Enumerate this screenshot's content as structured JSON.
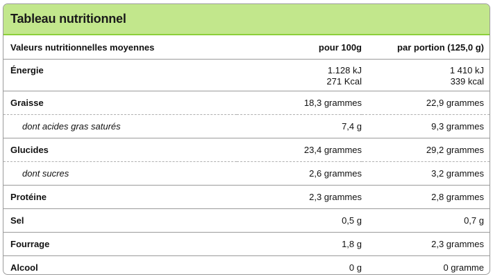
{
  "title": "Tableau nutritionnel",
  "header": {
    "label": "Valeurs nutritionnelles moyennes",
    "per100": "pour 100g",
    "perPortion": "par portion (125,0 g)"
  },
  "energy": {
    "label": "Énergie",
    "per100_kj": "1.128 kJ",
    "per100_kcal": "271 Kcal",
    "portion_kj": "1 410 kJ",
    "portion_kcal": "339 kcal"
  },
  "rows": [
    {
      "label": "Graisse",
      "per100": "18,3 grammes",
      "portion": "22,9 grammes"
    },
    {
      "label": "dont acides gras saturés",
      "per100": "7,4 g",
      "portion": "9,3 grammes"
    },
    {
      "label": "Glucides",
      "per100": "23,4 grammes",
      "portion": "29,2 grammes"
    },
    {
      "label": "dont sucres",
      "per100": "2,6 grammes",
      "portion": "3,2 grammes"
    },
    {
      "label": "Protéine",
      "per100": "2,3 grammes",
      "portion": "2,8 grammes"
    },
    {
      "label": "Sel",
      "per100": "0,5 g",
      "portion": "0,7 g"
    },
    {
      "label": "Fourrage",
      "per100": "1,8 g",
      "portion": "2,3 grammes"
    },
    {
      "label": "Alcool",
      "per100": "0 g",
      "portion": "0 gramme"
    }
  ],
  "colors": {
    "header_bg": "#c2e78c",
    "header_border": "#8ccf3a"
  }
}
